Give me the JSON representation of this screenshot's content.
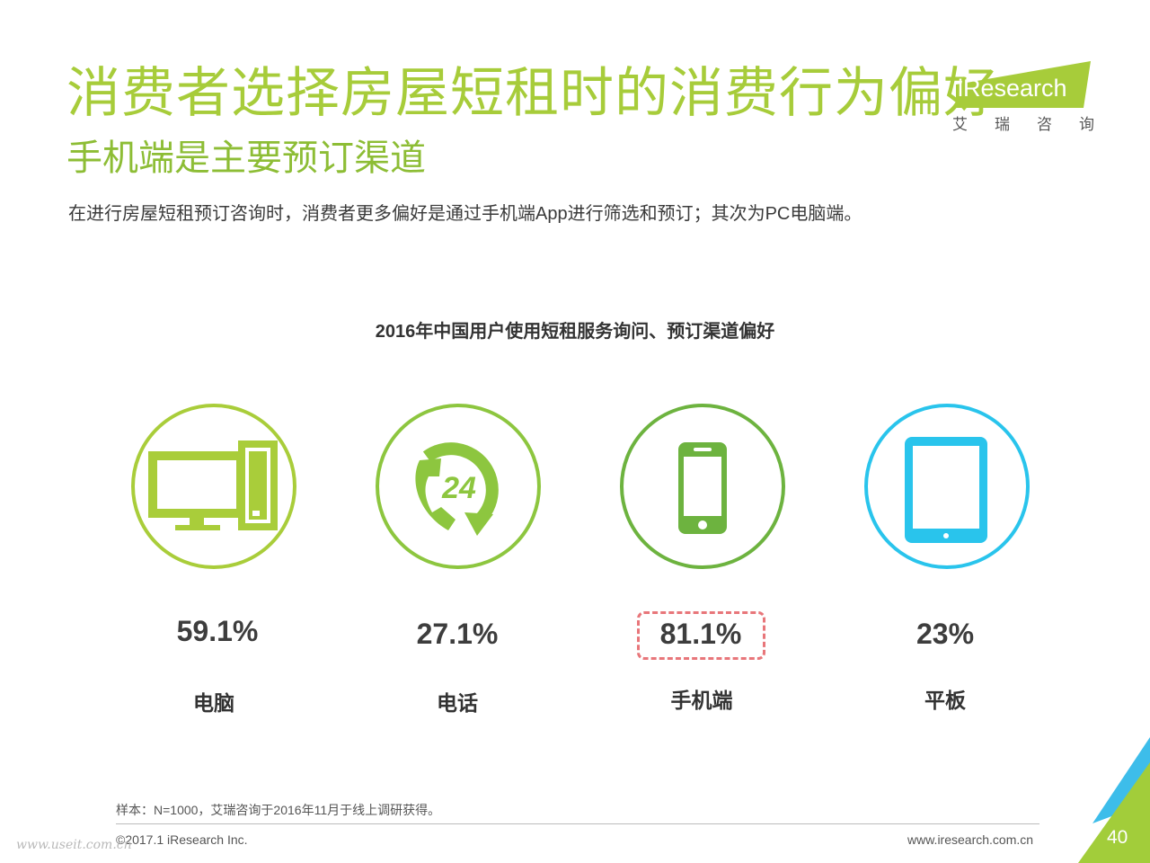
{
  "header": {
    "title": "消费者选择房屋短租时的消费行为偏好",
    "subtitle": "手机端是主要预订渠道",
    "lead": "在进行房屋短租预订咨询时，消费者更多偏好是通过手机端App进行筛选和预订；其次为PC电脑端。"
  },
  "logo": {
    "brand": "iResearch",
    "chars": [
      "艾",
      "瑞",
      "咨",
      "询"
    ]
  },
  "chart_data": {
    "type": "bar",
    "title": "2016年中国用户使用短租服务询问、预订渠道偏好",
    "categories": [
      "电脑",
      "电话",
      "手机端",
      "平板"
    ],
    "values": [
      59.1,
      27.1,
      81.1,
      23
    ],
    "value_labels": [
      "59.1%",
      "27.1%",
      "81.1%",
      "23%"
    ],
    "unit": "%",
    "icons": [
      "desktop-computer-icon",
      "phone-24h-icon",
      "smartphone-icon",
      "tablet-icon"
    ],
    "colors": [
      "#a9cd3a",
      "#8dc63f",
      "#6db33f",
      "#29c4ec"
    ],
    "highlighted_category": "手机端",
    "highlight_color": "#e8767a"
  },
  "footer": {
    "note": "样本：N=1000，艾瑞咨询于2016年11月于线上调研获得。",
    "copyright": "©2017.1 iResearch Inc.",
    "url": "www.iresearch.com.cn",
    "page_number": "40",
    "watermark": "www.useit.com.cn"
  },
  "theme": {
    "accent_green": "#a7cc3a",
    "corner_blue": "#3dbdea",
    "corner_green": "#a2cd3a"
  }
}
